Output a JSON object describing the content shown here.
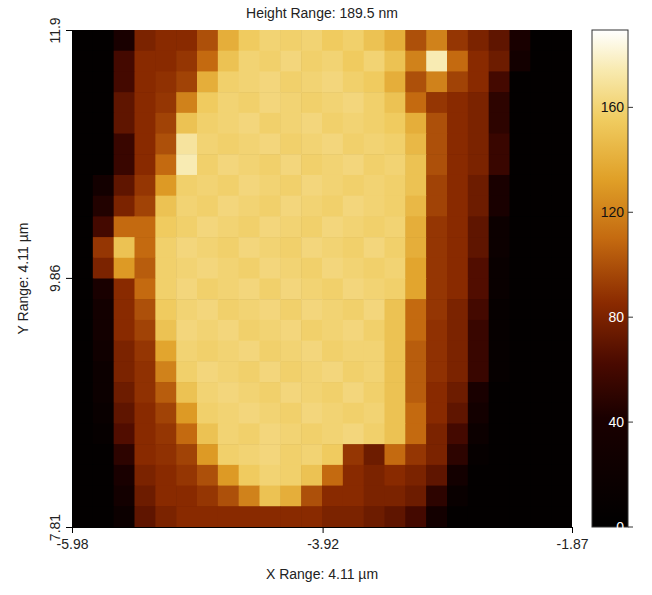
{
  "chart_data": {
    "type": "heatmap",
    "title": "Height Range:  189.5 nm",
    "xlabel": "X Range:  4.11 µm",
    "ylabel": "Y Range:  4.11 µm",
    "xlim": [
      -5.98,
      -1.87
    ],
    "ylim": [
      7.81,
      11.9
    ],
    "xticks": [
      -5.98,
      -3.92,
      -1.87
    ],
    "yticks": [
      7.81,
      9.86,
      11.9
    ],
    "zlim": [
      0,
      189.5
    ],
    "zticks": [
      0,
      40,
      80,
      120,
      160
    ],
    "z": [
      [
        5,
        5,
        40,
        80,
        85,
        85,
        100,
        140,
        155,
        160,
        158,
        160,
        155,
        158,
        150,
        140,
        100,
        120,
        90,
        80,
        70,
        40,
        5,
        5
      ],
      [
        5,
        5,
        60,
        85,
        85,
        90,
        110,
        150,
        160,
        158,
        162,
        158,
        160,
        155,
        160,
        150,
        120,
        175,
        110,
        85,
        75,
        30,
        5,
        5
      ],
      [
        5,
        5,
        60,
        85,
        88,
        95,
        140,
        158,
        160,
        162,
        158,
        160,
        162,
        158,
        155,
        140,
        100,
        120,
        95,
        85,
        60,
        5,
        5,
        5
      ],
      [
        5,
        5,
        70,
        85,
        90,
        120,
        155,
        160,
        158,
        162,
        160,
        158,
        160,
        162,
        158,
        150,
        110,
        90,
        85,
        80,
        50,
        5,
        5,
        5
      ],
      [
        5,
        5,
        70,
        85,
        95,
        150,
        158,
        160,
        162,
        158,
        160,
        162,
        158,
        160,
        158,
        155,
        140,
        100,
        85,
        80,
        50,
        5,
        5,
        5
      ],
      [
        5,
        5,
        55,
        85,
        100,
        170,
        160,
        158,
        160,
        162,
        158,
        160,
        162,
        158,
        160,
        158,
        145,
        100,
        85,
        80,
        55,
        5,
        5,
        5
      ],
      [
        5,
        5,
        55,
        85,
        110,
        175,
        158,
        162,
        160,
        158,
        162,
        158,
        160,
        162,
        158,
        160,
        150,
        100,
        85,
        80,
        55,
        5,
        5,
        5
      ],
      [
        5,
        30,
        70,
        90,
        130,
        158,
        160,
        158,
        162,
        160,
        158,
        162,
        160,
        158,
        160,
        158,
        150,
        95,
        85,
        75,
        40,
        5,
        5,
        5
      ],
      [
        5,
        45,
        80,
        95,
        150,
        160,
        158,
        162,
        160,
        158,
        162,
        160,
        158,
        162,
        160,
        158,
        145,
        95,
        85,
        75,
        40,
        5,
        5,
        5
      ],
      [
        5,
        60,
        110,
        110,
        155,
        158,
        162,
        160,
        158,
        162,
        160,
        158,
        162,
        160,
        158,
        160,
        140,
        90,
        85,
        70,
        20,
        5,
        5,
        5
      ],
      [
        5,
        90,
        150,
        110,
        158,
        162,
        160,
        158,
        162,
        160,
        158,
        162,
        160,
        158,
        162,
        158,
        140,
        90,
        85,
        70,
        20,
        5,
        5,
        5
      ],
      [
        5,
        80,
        130,
        105,
        158,
        160,
        162,
        160,
        158,
        162,
        160,
        158,
        162,
        160,
        158,
        160,
        135,
        90,
        85,
        65,
        15,
        5,
        5,
        5
      ],
      [
        5,
        40,
        85,
        110,
        158,
        162,
        158,
        160,
        162,
        158,
        162,
        160,
        158,
        162,
        160,
        158,
        135,
        90,
        85,
        65,
        15,
        5,
        5,
        5
      ],
      [
        5,
        30,
        85,
        100,
        155,
        160,
        162,
        158,
        160,
        162,
        158,
        162,
        160,
        158,
        162,
        150,
        110,
        90,
        80,
        60,
        10,
        5,
        5,
        5
      ],
      [
        5,
        30,
        85,
        95,
        150,
        162,
        160,
        162,
        158,
        160,
        162,
        158,
        160,
        162,
        158,
        150,
        110,
        88,
        80,
        55,
        10,
        5,
        5,
        5
      ],
      [
        5,
        25,
        80,
        90,
        135,
        160,
        158,
        160,
        162,
        158,
        160,
        162,
        158,
        160,
        160,
        150,
        105,
        88,
        80,
        55,
        10,
        5,
        5,
        5
      ],
      [
        5,
        20,
        80,
        88,
        120,
        158,
        162,
        160,
        158,
        162,
        158,
        160,
        162,
        158,
        160,
        150,
        105,
        88,
        80,
        55,
        10,
        5,
        5,
        5
      ],
      [
        5,
        20,
        75,
        88,
        105,
        150,
        160,
        162,
        160,
        158,
        162,
        160,
        158,
        162,
        158,
        150,
        105,
        85,
        75,
        40,
        5,
        5,
        5,
        5
      ],
      [
        5,
        15,
        70,
        85,
        95,
        130,
        158,
        160,
        162,
        160,
        158,
        162,
        160,
        158,
        160,
        150,
        110,
        85,
        70,
        30,
        5,
        5,
        5,
        5
      ],
      [
        5,
        10,
        65,
        85,
        90,
        110,
        150,
        160,
        158,
        162,
        160,
        158,
        160,
        162,
        158,
        150,
        110,
        80,
        60,
        20,
        5,
        5,
        5,
        5
      ],
      [
        5,
        5,
        50,
        85,
        88,
        95,
        130,
        158,
        160,
        162,
        158,
        160,
        155,
        90,
        75,
        110,
        90,
        80,
        50,
        10,
        5,
        5,
        5,
        5
      ],
      [
        5,
        5,
        40,
        80,
        85,
        90,
        100,
        130,
        155,
        160,
        158,
        150,
        110,
        85,
        80,
        85,
        80,
        70,
        30,
        5,
        5,
        5,
        5,
        5
      ],
      [
        5,
        5,
        30,
        75,
        85,
        85,
        90,
        100,
        120,
        150,
        140,
        100,
        85,
        85,
        80,
        80,
        75,
        50,
        15,
        5,
        5,
        5,
        5,
        5
      ],
      [
        5,
        5,
        20,
        70,
        80,
        85,
        85,
        85,
        85,
        85,
        85,
        85,
        80,
        80,
        75,
        70,
        60,
        30,
        5,
        5,
        5,
        5,
        5,
        5
      ]
    ]
  }
}
